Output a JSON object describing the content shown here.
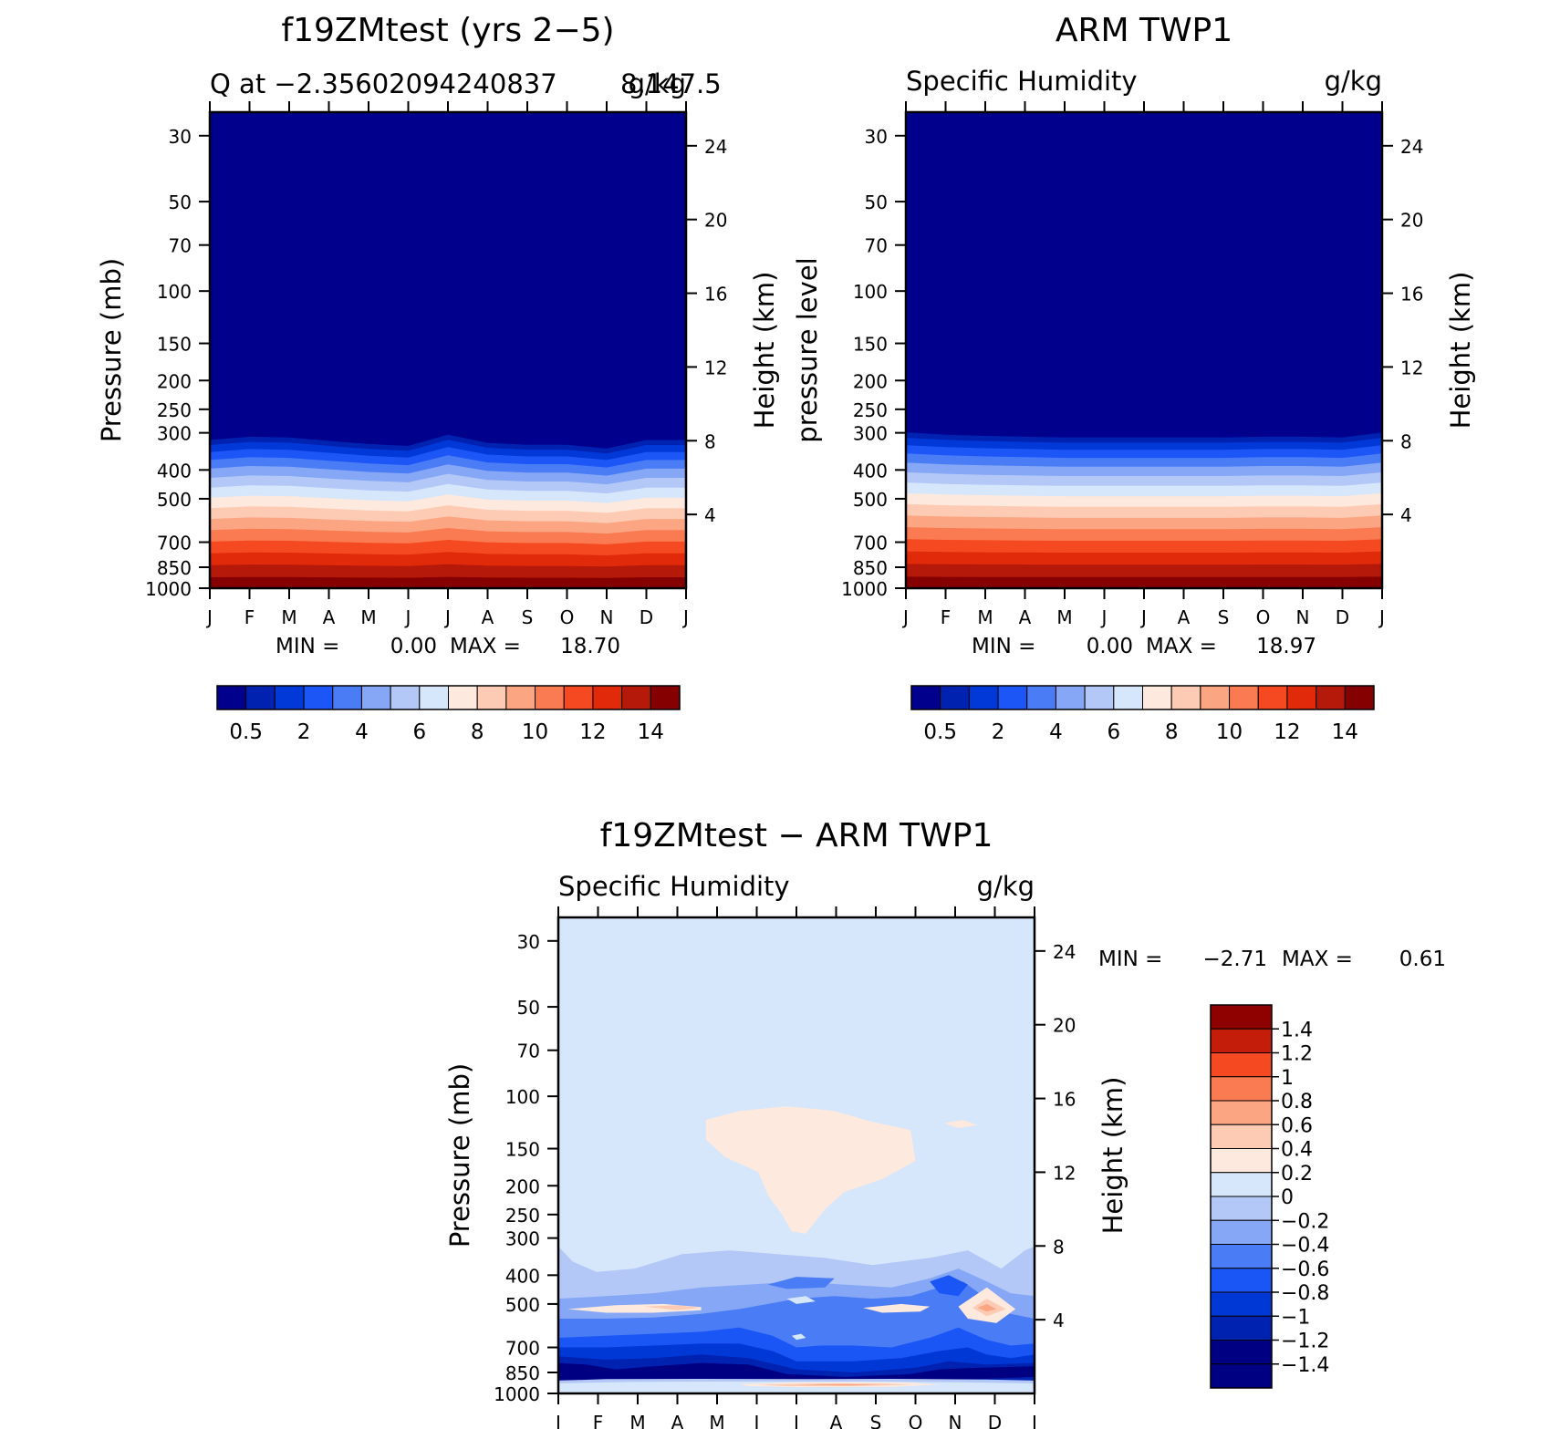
{
  "colors": {
    "seq": [
      "#00008c",
      "#0022b0",
      "#0039d8",
      "#1c56f7",
      "#4a7cf6",
      "#85a7f6",
      "#b3c8f7",
      "#d6e6fb",
      "#fde9dd",
      "#fdcbb4",
      "#fca582",
      "#fa7b52",
      "#f54a21",
      "#e02a0a",
      "#b5190a",
      "#850000"
    ],
    "diff": [
      "#000083",
      "#0022b0",
      "#0038d6",
      "#1a55f5",
      "#4a7cf6",
      "#85a7f6",
      "#b3c8f7",
      "#d6e6fb",
      "#fde9dd",
      "#fdcbb4",
      "#fca582",
      "#fa7b52",
      "#f54a21",
      "#c41e0a",
      "#8f0000"
    ]
  },
  "chart_data": [
    {
      "type": "heatmap",
      "title": "f19ZMtest (yrs 2−5)",
      "subtitle_left": "Q at −2.35602094240837",
      "subtitle_right": "g/kg",
      "subtitle_tail": "8,147.5",
      "ylabel": "Pressure (mb)",
      "y2label": "Height (km)",
      "x_ticks": [
        "J",
        "F",
        "M",
        "A",
        "M",
        "J",
        "J",
        "A",
        "S",
        "O",
        "N",
        "D",
        "J"
      ],
      "y_ticks": [
        "30",
        "50",
        "70",
        "100",
        "150",
        "200",
        "250",
        "300",
        "400",
        "500",
        "700",
        "850",
        "1000"
      ],
      "y_tick_values": [
        30,
        50,
        70,
        100,
        150,
        200,
        250,
        300,
        400,
        500,
        700,
        850,
        1000
      ],
      "height_ticks": [
        "24",
        "20",
        "16",
        "12",
        "8",
        "4"
      ],
      "height_tick_values": [
        24,
        20,
        16,
        12,
        8,
        4
      ],
      "ylim_mb": [
        1000,
        25
      ],
      "stats": {
        "min_label": "MIN =",
        "min": "0.00",
        "max_label": "MAX =",
        "max": "18.70"
      },
      "colorbar": {
        "levels": [
          0.5,
          1,
          2,
          3,
          4,
          5,
          6,
          7,
          8,
          9,
          10,
          11,
          12,
          13,
          14
        ],
        "labels": [
          "0.5",
          "2",
          "4",
          "6",
          "8",
          "10",
          "12",
          "14"
        ]
      },
      "top_boundary_mb": [
        318,
        310,
        312,
        320,
        328,
        333,
        305,
        325,
        330,
        330,
        340,
        318,
        318
      ]
    },
    {
      "type": "heatmap",
      "title": "ARM TWP1",
      "subtitle_left": "Specific Humidity",
      "subtitle_right": "g/kg",
      "ylabel": "pressure level",
      "y2label": "Height (km)",
      "x_ticks": [
        "J",
        "F",
        "M",
        "A",
        "M",
        "J",
        "J",
        "A",
        "S",
        "O",
        "N",
        "D",
        "J"
      ],
      "y_ticks": [
        "30",
        "50",
        "70",
        "100",
        "150",
        "200",
        "250",
        "300",
        "400",
        "500",
        "700",
        "850",
        "1000"
      ],
      "y_tick_values": [
        30,
        50,
        70,
        100,
        150,
        200,
        250,
        300,
        400,
        500,
        700,
        850,
        1000
      ],
      "height_ticks": [
        "24",
        "20",
        "16",
        "12",
        "8",
        "4"
      ],
      "height_tick_values": [
        24,
        20,
        16,
        12,
        8,
        4
      ],
      "ylim_mb": [
        1000,
        25
      ],
      "stats": {
        "min_label": "MIN =",
        "min": "0.00",
        "max_label": "MAX =",
        "max": "18.97"
      },
      "colorbar": {
        "levels": [
          0.5,
          1,
          2,
          3,
          4,
          5,
          6,
          7,
          8,
          9,
          10,
          11,
          12,
          13,
          14
        ],
        "labels": [
          "0.5",
          "2",
          "4",
          "6",
          "8",
          "10",
          "12",
          "14"
        ]
      },
      "top_boundary_mb": [
        300,
        305,
        308,
        310,
        312,
        312,
        312,
        312,
        312,
        310,
        310,
        312,
        300
      ]
    },
    {
      "type": "heatmap",
      "title": "f19ZMtest − ARM TWP1",
      "subtitle_left": "Specific Humidity",
      "subtitle_right": "g/kg",
      "ylabel": "Pressure (mb)",
      "y2label": "Height (km)",
      "x_ticks": [
        "J",
        "F",
        "M",
        "A",
        "M",
        "J",
        "J",
        "A",
        "S",
        "O",
        "N",
        "D",
        "J"
      ],
      "y_ticks": [
        "30",
        "50",
        "70",
        "100",
        "150",
        "200",
        "250",
        "300",
        "400",
        "500",
        "700",
        "850",
        "1000"
      ],
      "y_tick_values": [
        30,
        50,
        70,
        100,
        150,
        200,
        250,
        300,
        400,
        500,
        700,
        850,
        1000
      ],
      "height_ticks": [
        "24",
        "20",
        "16",
        "12",
        "8",
        "4"
      ],
      "height_tick_values": [
        24,
        20,
        16,
        12,
        8,
        4
      ],
      "ylim_mb": [
        1000,
        25
      ],
      "stats": {
        "min_label": "MIN =",
        "min": "−2.71",
        "max_label": "MAX =",
        "max": "0.61"
      },
      "colorbar": {
        "levels": [
          -1.4,
          -1.2,
          -1,
          -0.8,
          -0.6,
          -0.4,
          -0.2,
          0,
          0.2,
          0.4,
          0.6,
          0.8,
          1,
          1.2,
          1.4
        ],
        "labels": [
          "1.4",
          "1.2",
          "1",
          "0.8",
          "0.6",
          "0.4",
          "0.2",
          "0",
          "−0.2",
          "−0.4",
          "−0.6",
          "−0.8",
          "−1",
          "−1.2",
          "−1.4"
        ]
      }
    }
  ]
}
